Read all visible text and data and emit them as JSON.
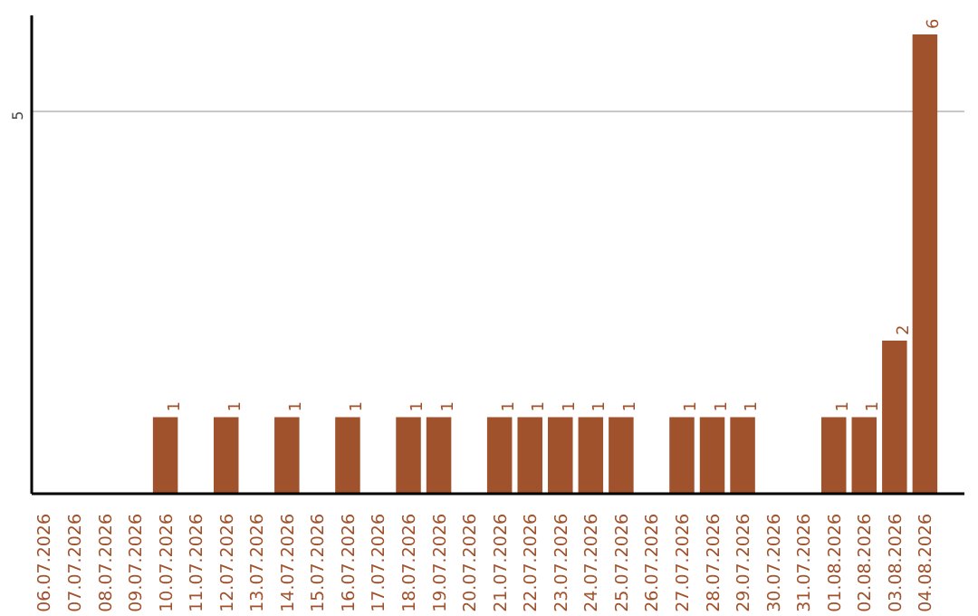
{
  "chart_data": {
    "type": "bar",
    "categories": [
      "06.07.2026",
      "07.07.2026",
      "08.07.2026",
      "09.07.2026",
      "10.07.2026",
      "11.07.2026",
      "12.07.2026",
      "13.07.2026",
      "14.07.2026",
      "15.07.2026",
      "16.07.2026",
      "17.07.2026",
      "18.07.2026",
      "19.07.2026",
      "20.07.2026",
      "21.07.2026",
      "22.07.2026",
      "23.07.2026",
      "24.07.2026",
      "25.07.2026",
      "26.07.2026",
      "27.07.2026",
      "28.07.2026",
      "29.07.2026",
      "30.07.2026",
      "31.07.2026",
      "01.08.2026",
      "02.08.2026",
      "03.08.2026",
      "04.08.2026"
    ],
    "values": [
      0,
      0,
      0,
      0,
      1,
      0,
      1,
      0,
      1,
      0,
      1,
      0,
      1,
      1,
      0,
      1,
      1,
      1,
      1,
      1,
      0,
      1,
      1,
      1,
      0,
      0,
      1,
      1,
      2,
      6
    ],
    "value_labels": [
      null,
      null,
      null,
      null,
      "1",
      null,
      "1",
      null,
      "1",
      null,
      "1",
      null,
      "1",
      "1",
      null,
      "1",
      "1",
      "1",
      "1",
      "1",
      null,
      "1",
      "1",
      "1",
      null,
      null,
      "1",
      "1",
      "2",
      "6"
    ],
    "color": "#a0522d",
    "ylim": [
      0,
      6.25
    ],
    "yticks": [
      5
    ],
    "grid": "y"
  }
}
